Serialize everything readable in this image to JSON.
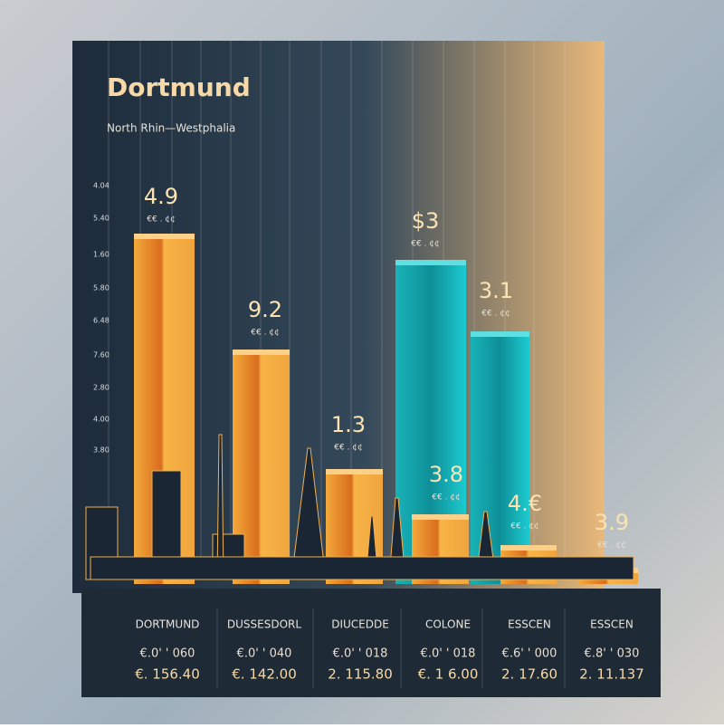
{
  "header": {
    "title": "Dortmund",
    "subtitle": "North Rhin—Westphalia"
  },
  "y_axis_labels": [
    "4.04",
    "5.40",
    "1.60",
    "5.80",
    "6.48",
    "7.60",
    "2.80",
    "4.00",
    "3.80"
  ],
  "bars": [
    {
      "label": "4.9",
      "sublabel": "€€ . ¢¢"
    },
    {
      "label": "9.2",
      "sublabel": "€€ . ¢¢"
    },
    {
      "label": "1.3",
      "sublabel": "€€ . ¢¢"
    },
    {
      "label": "$3",
      "sublabel": "€€ . ¢¢"
    },
    {
      "label": "3.1",
      "sublabel": "€€ . ¢¢"
    },
    {
      "label": "3.8",
      "sublabel": "€€ . ¢¢"
    },
    {
      "label": "4.€",
      "sublabel": "€€ . ¢¢"
    },
    {
      "label": "3.9",
      "sublabel": "€€ . ¢¢"
    }
  ],
  "cities": [
    {
      "name": "DORTMUND",
      "line1": "€.0' ' 060",
      "line2": "€. 156.40"
    },
    {
      "name": "DUSSESDORL",
      "line1": "€.0' ' 040",
      "line2": "€. 142.00"
    },
    {
      "name": "DIUCEDDE",
      "line1": "€.0' ' 018",
      "line2": "2. 115.80"
    },
    {
      "name": "COLONE",
      "line1": "€.0' ' 018",
      "line2": "€. 1 6.00"
    },
    {
      "name": "ESSCEN",
      "line1": "€.6' ' 000",
      "line2": "2. 17.60"
    },
    {
      "name": "ESSCEN",
      "line1": "€.8' ' 030",
      "line2": "2. 11.137"
    }
  ]
}
